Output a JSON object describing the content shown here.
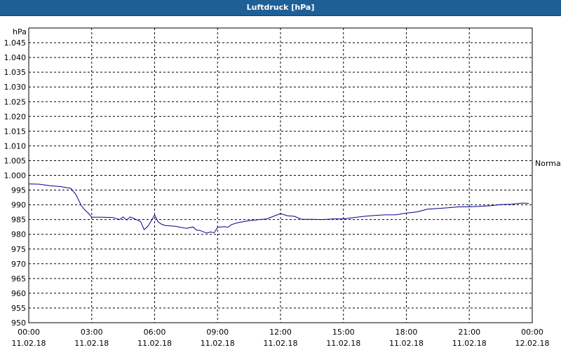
{
  "window": {
    "title": "Luftdruck [hPa]"
  },
  "chart_data": {
    "type": "line",
    "ylabel": "hPa",
    "ylim": [
      950,
      1050
    ],
    "y_ticks": [
      {
        "value": 1045,
        "label": "1.045"
      },
      {
        "value": 1040,
        "label": "1.040"
      },
      {
        "value": 1035,
        "label": "1.035"
      },
      {
        "value": 1030,
        "label": "1.030"
      },
      {
        "value": 1025,
        "label": "1.025"
      },
      {
        "value": 1020,
        "label": "1.020"
      },
      {
        "value": 1015,
        "label": "1.015"
      },
      {
        "value": 1010,
        "label": "1.010"
      },
      {
        "value": 1005,
        "label": "1.005"
      },
      {
        "value": 1000,
        "label": "1.000"
      },
      {
        "value": 995,
        "label": "995"
      },
      {
        "value": 990,
        "label": "990"
      },
      {
        "value": 985,
        "label": "985"
      },
      {
        "value": 980,
        "label": "980"
      },
      {
        "value": 975,
        "label": "975"
      },
      {
        "value": 970,
        "label": "970"
      },
      {
        "value": 965,
        "label": "965"
      },
      {
        "value": 960,
        "label": "960"
      },
      {
        "value": 955,
        "label": "955"
      },
      {
        "value": 950,
        "label": "950"
      }
    ],
    "xlim": [
      "11.02.18 00:00",
      "12.02.18 00:00"
    ],
    "x_ticks": [
      {
        "time": "00:00",
        "date": "11.02.18"
      },
      {
        "time": "03:00",
        "date": "11.02.18"
      },
      {
        "time": "06:00",
        "date": "11.02.18"
      },
      {
        "time": "09:00",
        "date": "11.02.18"
      },
      {
        "time": "12:00",
        "date": "11.02.18"
      },
      {
        "time": "15:00",
        "date": "11.02.18"
      },
      {
        "time": "18:00",
        "date": "11.02.18"
      },
      {
        "time": "21:00",
        "date": "11.02.18"
      },
      {
        "time": "00:00",
        "date": "12.02.18"
      }
    ],
    "grid": true,
    "reference_line": {
      "value": 1005,
      "label": "Normal"
    },
    "series": [
      {
        "color": "#00008b",
        "x": [
          "11.02.18 00:00",
          "11.02.18 00:30",
          "11.02.18 01:00",
          "11.02.18 01:30",
          "11.02.18 02:00",
          "11.02.18 02:15",
          "11.02.18 02:30",
          "11.02.18 02:40",
          "11.02.18 02:50",
          "11.02.18 03:00",
          "11.02.18 03:30",
          "11.02.18 04:00",
          "11.02.18 04:20",
          "11.02.18 04:30",
          "11.02.18 04:40",
          "11.02.18 04:50",
          "11.02.18 05:00",
          "11.02.18 05:20",
          "11.02.18 05:30",
          "11.02.18 05:40",
          "11.02.18 05:50",
          "11.02.18 06:00",
          "11.02.18 06:10",
          "11.02.18 06:20",
          "11.02.18 06:30",
          "11.02.18 07:00",
          "11.02.18 07:30",
          "11.02.18 07:50",
          "11.02.18 08:00",
          "11.02.18 08:10",
          "11.02.18 08:20",
          "11.02.18 08:30",
          "11.02.18 08:40",
          "11.02.18 08:50",
          "11.02.18 09:00",
          "11.02.18 09:20",
          "11.02.18 09:30",
          "11.02.18 09:40",
          "11.02.18 10:00",
          "11.02.18 10:30",
          "11.02.18 11:00",
          "11.02.18 11:20",
          "11.02.18 11:40",
          "11.02.18 12:00",
          "11.02.18 12:20",
          "11.02.18 12:40",
          "11.02.18 13:00",
          "11.02.18 13:30",
          "11.02.18 14:00",
          "11.02.18 14:30",
          "11.02.18 15:00",
          "11.02.18 15:30",
          "11.02.18 16:00",
          "11.02.18 16:30",
          "11.02.18 17:00",
          "11.02.18 17:30",
          "11.02.18 18:00",
          "11.02.18 18:30",
          "11.02.18 19:00",
          "11.02.18 19:30",
          "11.02.18 20:00",
          "11.02.18 20:30",
          "11.02.18 21:00",
          "11.02.18 21:30",
          "11.02.18 22:00",
          "11.02.18 22:30",
          "11.02.18 23:00",
          "11.02.18 23:30",
          "11.02.18 23:50"
        ],
        "values": [
          997.1,
          997.0,
          996.5,
          996.2,
          995.6,
          993.5,
          989.8,
          988.3,
          987.2,
          985.8,
          985.8,
          985.7,
          985.0,
          985.9,
          984.8,
          985.9,
          985.4,
          984.3,
          981.6,
          982.6,
          984.5,
          986.6,
          984.2,
          983.4,
          983.0,
          982.7,
          982.0,
          982.5,
          981.4,
          981.3,
          980.8,
          980.4,
          980.8,
          980.5,
          982.4,
          982.6,
          982.4,
          983.3,
          984.0,
          984.6,
          985.0,
          985.2,
          986.1,
          987.0,
          986.3,
          986.1,
          985.1,
          985.1,
          985.0,
          985.2,
          985.2,
          985.7,
          986.1,
          986.4,
          986.6,
          986.6,
          987.2,
          987.6,
          988.5,
          988.8,
          989.0,
          989.3,
          989.3,
          989.5,
          989.7,
          990.1,
          990.2,
          990.6,
          990.5
        ]
      }
    ]
  }
}
